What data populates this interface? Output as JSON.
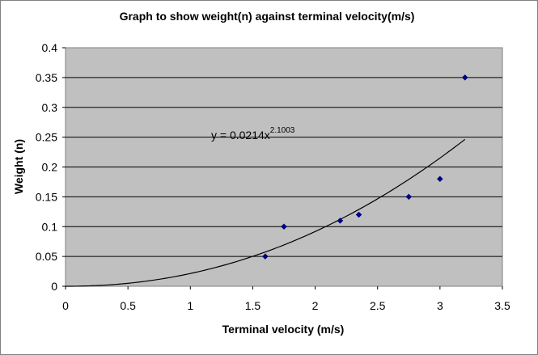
{
  "chart_data": {
    "type": "scatter",
    "title": "Graph to show weight(n) against terminal velocity(m/s)",
    "xlabel": "Terminal velocity (m/s)",
    "ylabel": "Weight (n)",
    "xlim": [
      0,
      3.5
    ],
    "ylim": [
      0,
      0.4
    ],
    "x_ticks": [
      "0",
      "0.5",
      "1",
      "1.5",
      "2",
      "2.5",
      "3",
      "3.5"
    ],
    "y_ticks": [
      "0",
      "0.05",
      "0.1",
      "0.15",
      "0.2",
      "0.25",
      "0.3",
      "0.35",
      "0.4"
    ],
    "grid": "horizontal",
    "series": [
      {
        "name": "Weight",
        "color": "#000080",
        "points": [
          {
            "x": 1.6,
            "y": 0.05
          },
          {
            "x": 1.75,
            "y": 0.1
          },
          {
            "x": 2.2,
            "y": 0.11
          },
          {
            "x": 2.35,
            "y": 0.12
          },
          {
            "x": 2.75,
            "y": 0.15
          },
          {
            "x": 3.0,
            "y": 0.18
          },
          {
            "x": 3.2,
            "y": 0.35
          }
        ]
      }
    ],
    "trendline": {
      "type": "power",
      "coefficient": 0.0214,
      "exponent": 2.1003,
      "x_range": [
        0,
        3.2
      ],
      "equation_base": "y = 0.0214x",
      "equation_exponent": "2.1003"
    },
    "colors": {
      "plot_background": "#c0c0c0",
      "gridline": "#000000",
      "marker": "#000080",
      "trendline": "#000000"
    }
  }
}
